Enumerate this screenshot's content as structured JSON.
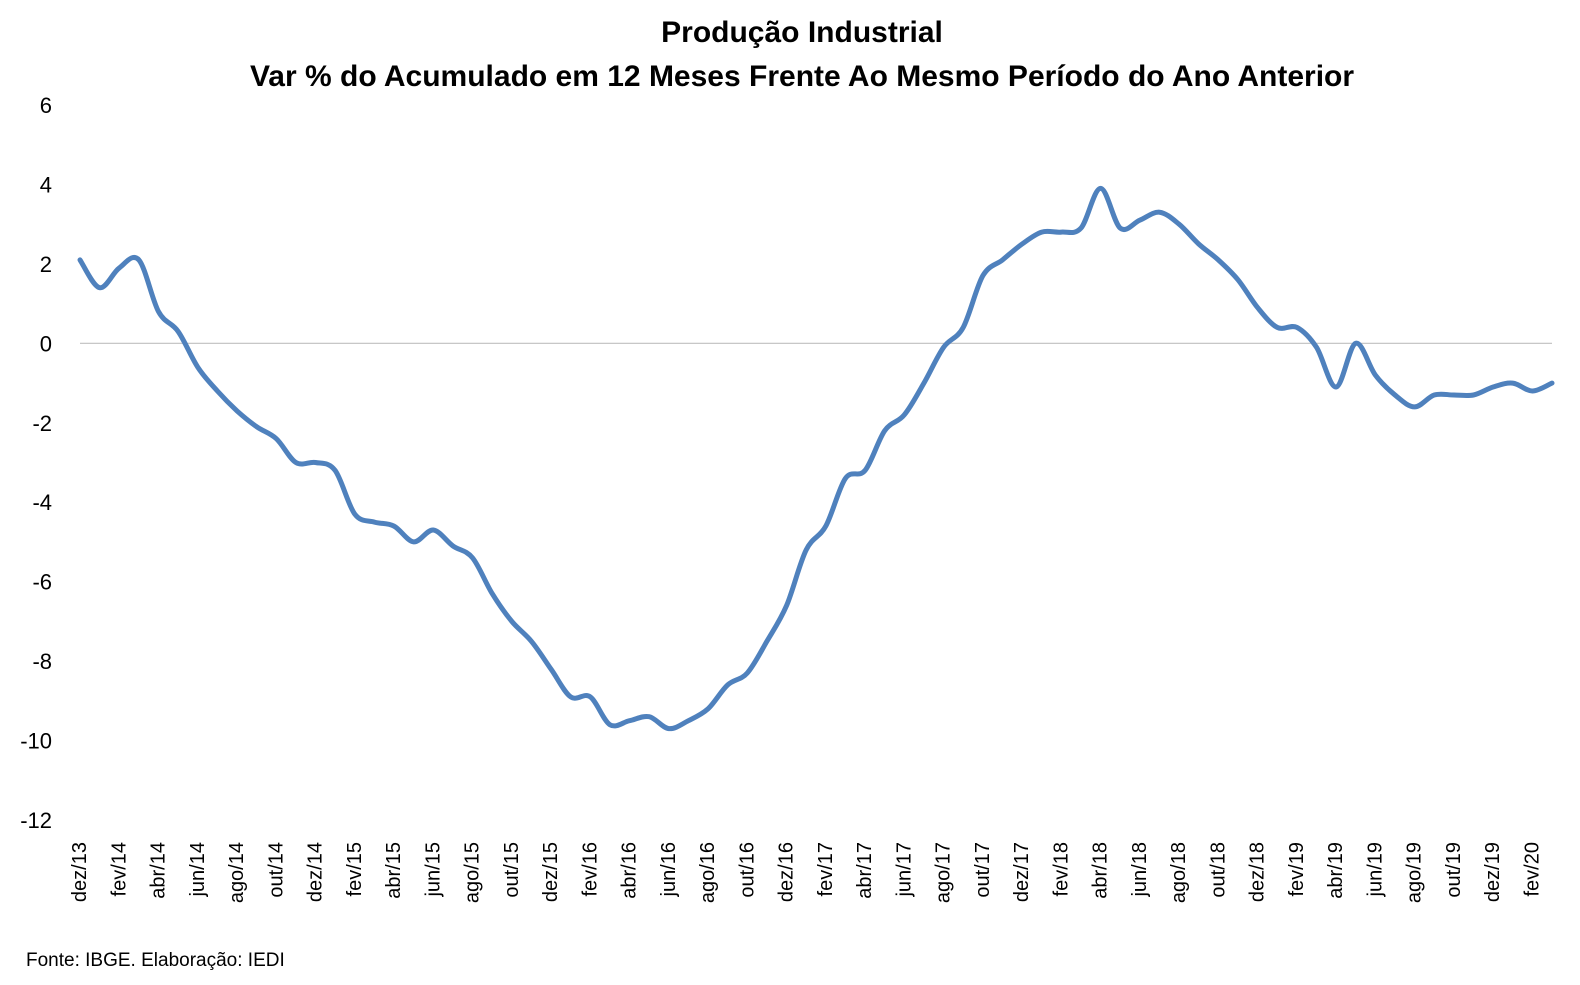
{
  "chart_data": {
    "type": "line",
    "title": [
      "Produção Industrial",
      "Var % do Acumulado em 12 Meses Frente Ao Mesmo Período do Ano Anterior"
    ],
    "xlabel": "",
    "ylabel": "",
    "ylim": [
      -12,
      6
    ],
    "yticks": [
      6,
      4,
      2,
      0,
      -2,
      -4,
      -6,
      -8,
      -10,
      -12
    ],
    "grid": false,
    "legend": "none",
    "tick_labels": [
      "dez/13",
      "fev/14",
      "abr/14",
      "jun/14",
      "ago/14",
      "out/14",
      "dez/14",
      "fev/15",
      "abr/15",
      "jun/15",
      "ago/15",
      "out/15",
      "dez/15",
      "fev/16",
      "abr/16",
      "jun/16",
      "ago/16",
      "out/16",
      "dez/16",
      "fev/17",
      "abr/17",
      "jun/17",
      "ago/17",
      "out/17",
      "dez/17",
      "fev/18",
      "abr/18",
      "jun/18",
      "ago/18",
      "out/18",
      "dez/18",
      "fev/19",
      "abr/19",
      "jun/19",
      "ago/19",
      "out/19",
      "dez/19",
      "fev/20"
    ],
    "x": [
      "dez/13",
      "jan/14",
      "fev/14",
      "mar/14",
      "abr/14",
      "mai/14",
      "jun/14",
      "jul/14",
      "ago/14",
      "set/14",
      "out/14",
      "nov/14",
      "dez/14",
      "jan/15",
      "fev/15",
      "mar/15",
      "abr/15",
      "mai/15",
      "jun/15",
      "jul/15",
      "ago/15",
      "set/15",
      "out/15",
      "nov/15",
      "dez/15",
      "jan/16",
      "fev/16",
      "mar/16",
      "abr/16",
      "mai/16",
      "jun/16",
      "jul/16",
      "ago/16",
      "set/16",
      "out/16",
      "nov/16",
      "dez/16",
      "jan/17",
      "fev/17",
      "mar/17",
      "abr/17",
      "mai/17",
      "jun/17",
      "jul/17",
      "ago/17",
      "set/17",
      "out/17",
      "nov/17",
      "dez/17",
      "jan/18",
      "fev/18",
      "mar/18",
      "abr/18",
      "mai/18",
      "jun/18",
      "jul/18",
      "ago/18",
      "set/18",
      "out/18",
      "nov/18",
      "dez/18",
      "jan/19",
      "fev/19",
      "mar/19",
      "abr/19",
      "mai/19",
      "jun/19",
      "jul/19",
      "ago/19",
      "set/19",
      "out/19",
      "nov/19",
      "dez/19",
      "jan/20",
      "fev/20",
      "mar/20"
    ],
    "series": [
      {
        "color": "#4f81bd",
        "values": [
          2.1,
          1.4,
          1.9,
          2.1,
          0.8,
          0.3,
          -0.6,
          -1.2,
          -1.7,
          -2.1,
          -2.4,
          -3.0,
          -3.0,
          -3.2,
          -4.3,
          -4.5,
          -4.6,
          -5.0,
          -4.7,
          -5.1,
          -5.4,
          -6.3,
          -7.0,
          -7.5,
          -8.2,
          -8.9,
          -8.9,
          -9.6,
          -9.5,
          -9.4,
          -9.7,
          -9.5,
          -9.2,
          -8.6,
          -8.3,
          -7.5,
          -6.6,
          -5.2,
          -4.6,
          -3.4,
          -3.2,
          -2.2,
          -1.8,
          -1.0,
          -0.1,
          0.4,
          1.7,
          2.1,
          2.5,
          2.8,
          2.8,
          2.9,
          3.9,
          2.9,
          3.1,
          3.3,
          3.0,
          2.5,
          2.1,
          1.6,
          0.9,
          0.4,
          0.4,
          -0.1,
          -1.1,
          0.0,
          -0.8,
          -1.3,
          -1.6,
          -1.3,
          -1.3,
          -1.3,
          -1.1,
          -1.0,
          -1.2,
          -1.0
        ]
      }
    ],
    "zero_line_color": "#bfbfbf",
    "source_note": "Fonte: IBGE. Elaboração: IEDI"
  }
}
